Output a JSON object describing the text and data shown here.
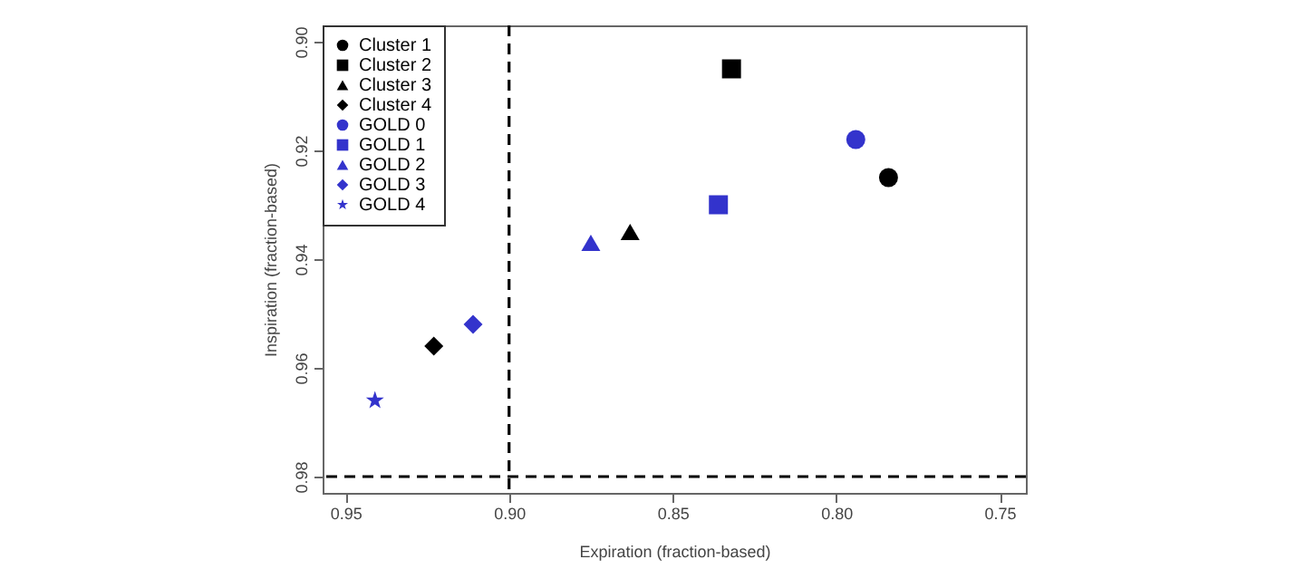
{
  "chart_data": {
    "type": "scatter",
    "xlabel": "Expiration (fraction-based)",
    "ylabel": "Inspiration (fraction-based)",
    "xlim": [
      0.957,
      0.742
    ],
    "ylim": [
      0.983,
      0.897
    ],
    "xticks": [
      {
        "value": 0.95,
        "label": "0.95"
      },
      {
        "value": 0.9,
        "label": "0.90"
      },
      {
        "value": 0.85,
        "label": "0.85"
      },
      {
        "value": 0.8,
        "label": "0.80"
      },
      {
        "value": 0.75,
        "label": "0.75"
      }
    ],
    "yticks": [
      {
        "value": 0.9,
        "label": "0.90"
      },
      {
        "value": 0.92,
        "label": "0.92"
      },
      {
        "value": 0.94,
        "label": "0.94"
      },
      {
        "value": 0.96,
        "label": "0.96"
      },
      {
        "value": 0.98,
        "label": "0.98"
      }
    ],
    "grid": false,
    "legend": "top left",
    "series": [
      {
        "name": "Cluster 1",
        "color": "#000000",
        "marker": "circle",
        "x": [
          0.784
        ],
        "values": [
          0.925
        ]
      },
      {
        "name": "Cluster 2",
        "color": "#000000",
        "marker": "square",
        "x": [
          0.832
        ],
        "values": [
          0.905
        ]
      },
      {
        "name": "Cluster 3",
        "color": "#000000",
        "marker": "triangle",
        "x": [
          0.863
        ],
        "values": [
          0.935
        ]
      },
      {
        "name": "Cluster 4",
        "color": "#000000",
        "marker": "diamond",
        "x": [
          0.923
        ],
        "values": [
          0.956
        ]
      },
      {
        "name": "GOLD 0",
        "color": "#3333cc",
        "marker": "circle",
        "x": [
          0.794
        ],
        "values": [
          0.918
        ]
      },
      {
        "name": "GOLD 1",
        "color": "#3333cc",
        "marker": "square",
        "x": [
          0.836
        ],
        "values": [
          0.93
        ]
      },
      {
        "name": "GOLD 2",
        "color": "#3333cc",
        "marker": "triangle",
        "x": [
          0.875
        ],
        "values": [
          0.937
        ]
      },
      {
        "name": "GOLD 3",
        "color": "#3333cc",
        "marker": "diamond",
        "x": [
          0.911
        ],
        "values": [
          0.952
        ]
      },
      {
        "name": "GOLD 4",
        "color": "#3333cc",
        "marker": "star",
        "x": [
          0.941
        ],
        "values": [
          0.966
        ]
      }
    ],
    "ref_lines": [
      {
        "axis": "x",
        "value": 0.9,
        "line_style": "dashed"
      },
      {
        "axis": "y",
        "value": 0.98,
        "line_style": "dashed"
      }
    ]
  }
}
